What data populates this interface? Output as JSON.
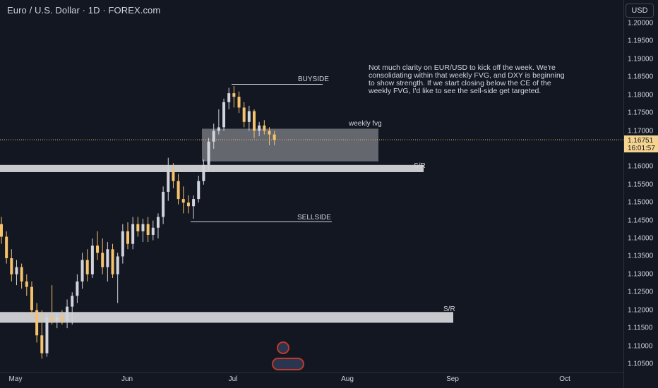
{
  "header": {
    "symbol": "Euro / U.S. Dollar · 1D · FOREX.com"
  },
  "price_axis": {
    "currency": "USD",
    "ticks": [
      "1.20000",
      "1.19500",
      "1.19000",
      "1.18500",
      "1.18000",
      "1.17500",
      "1.17000",
      "1.16500",
      "1.16000",
      "1.15500",
      "1.15000",
      "1.14500",
      "1.14000",
      "1.13500",
      "1.13000",
      "1.12500",
      "1.12000",
      "1.11500",
      "1.11000",
      "1.10500"
    ],
    "current_price": "1.16751",
    "countdown": "16:01:57"
  },
  "time_axis": {
    "months": [
      "May",
      "Jun",
      "Jul",
      "Aug",
      "Sep",
      "Oct"
    ]
  },
  "annotations": {
    "note": "Not much clarity on EUR/USD to kick off the week. We're consolidating within that weekly FVG, and DXY is beginning to show strength. If we start closing below the CE of the weekly FVG, I'd like to see the sell-side get targeted.",
    "buyside": "BUYSIDE",
    "sellside": "SELLSIDE",
    "weekly_fvg": "weekly fvg",
    "sr_upper": "S/R",
    "sr_lower": "S/R"
  },
  "colors": {
    "bull": "#d1d4dc",
    "bear": "#f6c26b",
    "background": "#131722",
    "price_line": "#f6c26b"
  },
  "chart_data": {
    "type": "candlestick",
    "symbol": "EURUSD",
    "timeframe": "1D",
    "ylim": [
      1.103,
      1.202
    ],
    "candles": [
      {
        "o": 1.144,
        "h": 1.146,
        "l": 1.1385,
        "c": 1.1405
      },
      {
        "o": 1.1405,
        "h": 1.142,
        "l": 1.133,
        "c": 1.1345
      },
      {
        "o": 1.1345,
        "h": 1.137,
        "l": 1.128,
        "c": 1.13
      },
      {
        "o": 1.13,
        "h": 1.134,
        "l": 1.127,
        "c": 1.132
      },
      {
        "o": 1.132,
        "h": 1.133,
        "l": 1.126,
        "c": 1.128
      },
      {
        "o": 1.128,
        "h": 1.13,
        "l": 1.124,
        "c": 1.1265
      },
      {
        "o": 1.1265,
        "h": 1.128,
        "l": 1.118,
        "c": 1.12
      },
      {
        "o": 1.12,
        "h": 1.122,
        "l": 1.111,
        "c": 1.113
      },
      {
        "o": 1.113,
        "h": 1.12,
        "l": 1.1065,
        "c": 1.108
      },
      {
        "o": 1.108,
        "h": 1.119,
        "l": 1.107,
        "c": 1.118
      },
      {
        "o": 1.118,
        "h": 1.127,
        "l": 1.116,
        "c": 1.117
      },
      {
        "o": 1.117,
        "h": 1.119,
        "l": 1.115,
        "c": 1.118
      },
      {
        "o": 1.118,
        "h": 1.12,
        "l": 1.116,
        "c": 1.117
      },
      {
        "o": 1.117,
        "h": 1.123,
        "l": 1.115,
        "c": 1.121
      },
      {
        "o": 1.121,
        "h": 1.125,
        "l": 1.116,
        "c": 1.124
      },
      {
        "o": 1.124,
        "h": 1.13,
        "l": 1.122,
        "c": 1.128
      },
      {
        "o": 1.128,
        "h": 1.136,
        "l": 1.126,
        "c": 1.134
      },
      {
        "o": 1.134,
        "h": 1.137,
        "l": 1.128,
        "c": 1.13
      },
      {
        "o": 1.13,
        "h": 1.14,
        "l": 1.129,
        "c": 1.138
      },
      {
        "o": 1.138,
        "h": 1.142,
        "l": 1.134,
        "c": 1.136
      },
      {
        "o": 1.136,
        "h": 1.14,
        "l": 1.13,
        "c": 1.132
      },
      {
        "o": 1.132,
        "h": 1.139,
        "l": 1.128,
        "c": 1.137
      },
      {
        "o": 1.137,
        "h": 1.1385,
        "l": 1.129,
        "c": 1.13
      },
      {
        "o": 1.13,
        "h": 1.136,
        "l": 1.122,
        "c": 1.135
      },
      {
        "o": 1.135,
        "h": 1.144,
        "l": 1.133,
        "c": 1.142
      },
      {
        "o": 1.142,
        "h": 1.1445,
        "l": 1.137,
        "c": 1.1385
      },
      {
        "o": 1.1385,
        "h": 1.146,
        "l": 1.137,
        "c": 1.144
      },
      {
        "o": 1.144,
        "h": 1.146,
        "l": 1.1405,
        "c": 1.142
      },
      {
        "o": 1.142,
        "h": 1.1455,
        "l": 1.139,
        "c": 1.144
      },
      {
        "o": 1.144,
        "h": 1.146,
        "l": 1.139,
        "c": 1.141
      },
      {
        "o": 1.141,
        "h": 1.145,
        "l": 1.1395,
        "c": 1.143
      },
      {
        "o": 1.143,
        "h": 1.147,
        "l": 1.14,
        "c": 1.146
      },
      {
        "o": 1.146,
        "h": 1.1545,
        "l": 1.144,
        "c": 1.153
      },
      {
        "o": 1.153,
        "h": 1.1625,
        "l": 1.1505,
        "c": 1.159
      },
      {
        "o": 1.159,
        "h": 1.161,
        "l": 1.154,
        "c": 1.156
      },
      {
        "o": 1.156,
        "h": 1.158,
        "l": 1.1495,
        "c": 1.151
      },
      {
        "o": 1.151,
        "h": 1.1545,
        "l": 1.147,
        "c": 1.15
      },
      {
        "o": 1.15,
        "h": 1.152,
        "l": 1.147,
        "c": 1.149
      },
      {
        "o": 1.149,
        "h": 1.152,
        "l": 1.1455,
        "c": 1.151
      },
      {
        "o": 1.151,
        "h": 1.1575,
        "l": 1.15,
        "c": 1.156
      },
      {
        "o": 1.156,
        "h": 1.162,
        "l": 1.155,
        "c": 1.1605
      },
      {
        "o": 1.1605,
        "h": 1.168,
        "l": 1.159,
        "c": 1.167
      },
      {
        "o": 1.167,
        "h": 1.172,
        "l": 1.165,
        "c": 1.17
      },
      {
        "o": 1.17,
        "h": 1.176,
        "l": 1.169,
        "c": 1.171
      },
      {
        "o": 1.171,
        "h": 1.179,
        "l": 1.17,
        "c": 1.178
      },
      {
        "o": 1.178,
        "h": 1.182,
        "l": 1.176,
        "c": 1.1805
      },
      {
        "o": 1.1805,
        "h": 1.1825,
        "l": 1.1765,
        "c": 1.1795
      },
      {
        "o": 1.1795,
        "h": 1.181,
        "l": 1.175,
        "c": 1.1765
      },
      {
        "o": 1.1765,
        "h": 1.178,
        "l": 1.171,
        "c": 1.1725
      },
      {
        "o": 1.1725,
        "h": 1.177,
        "l": 1.17,
        "c": 1.1755
      },
      {
        "o": 1.1755,
        "h": 1.176,
        "l": 1.168,
        "c": 1.17
      },
      {
        "o": 1.17,
        "h": 1.1725,
        "l": 1.1685,
        "c": 1.1715
      },
      {
        "o": 1.1715,
        "h": 1.173,
        "l": 1.169,
        "c": 1.17
      },
      {
        "o": 1.17,
        "h": 1.171,
        "l": 1.166,
        "c": 1.169
      },
      {
        "o": 1.169,
        "h": 1.17,
        "l": 1.166,
        "c": 1.1675
      }
    ]
  }
}
